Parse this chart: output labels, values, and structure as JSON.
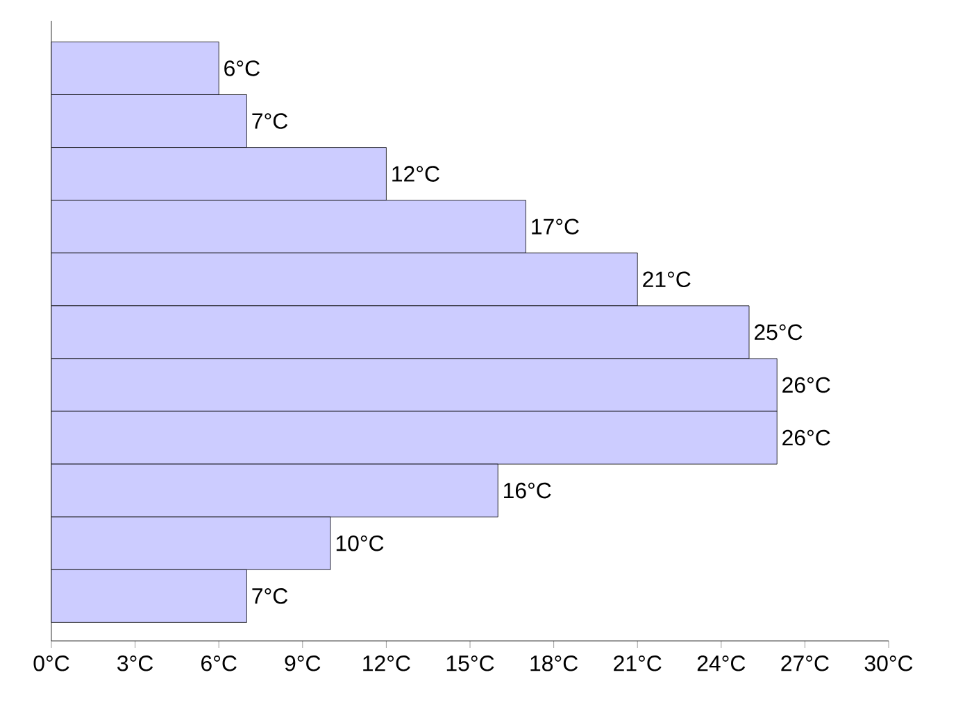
{
  "chart_data": {
    "type": "bar",
    "orientation": "horizontal",
    "categories": [
      null,
      null,
      null,
      null,
      null,
      null,
      null,
      null,
      null,
      null,
      null
    ],
    "values": [
      6,
      7,
      12,
      17,
      21,
      25,
      26,
      26,
      16,
      10,
      7
    ],
    "value_labels": [
      "6°C",
      "7°C",
      "12°C",
      "17°C",
      "21°C",
      "25°C",
      "26°C",
      "26°C",
      "16°C",
      "10°C",
      "7°C"
    ],
    "color": "#ccccff",
    "xlim": [
      0,
      30
    ],
    "xticks": [
      {
        "value": 0,
        "label": "0°C"
      },
      {
        "value": 3,
        "label": "3°C"
      },
      {
        "value": 6,
        "label": "6°C"
      },
      {
        "value": 9,
        "label": "9°C"
      },
      {
        "value": 12,
        "label": "12°C"
      },
      {
        "value": 15,
        "label": "15°C"
      },
      {
        "value": 18,
        "label": "18°C"
      },
      {
        "value": 21,
        "label": "21°C"
      },
      {
        "value": 24,
        "label": "24°C"
      },
      {
        "value": 27,
        "label": "27°C"
      },
      {
        "value": 30,
        "label": "30°C"
      }
    ],
    "grid": false
  }
}
